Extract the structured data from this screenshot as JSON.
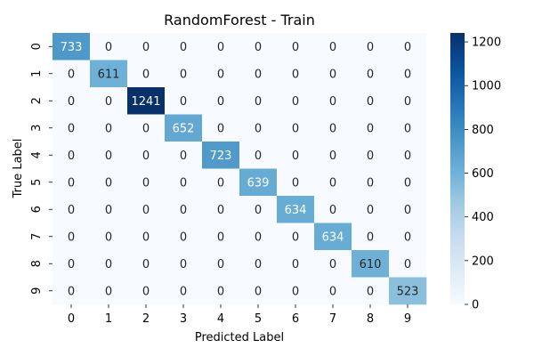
{
  "chart_data": {
    "type": "heatmap",
    "title": "RandomForest - Train",
    "xlabel": "Predicted Label",
    "ylabel": "True Label",
    "x_categories": [
      "0",
      "1",
      "2",
      "3",
      "4",
      "5",
      "6",
      "7",
      "8",
      "9"
    ],
    "y_categories": [
      "0",
      "1",
      "2",
      "3",
      "4",
      "5",
      "6",
      "7",
      "8",
      "9"
    ],
    "values": [
      [
        733,
        0,
        0,
        0,
        0,
        0,
        0,
        0,
        0,
        0
      ],
      [
        0,
        611,
        0,
        0,
        0,
        0,
        0,
        0,
        0,
        0
      ],
      [
        0,
        0,
        1241,
        0,
        0,
        0,
        0,
        0,
        0,
        0
      ],
      [
        0,
        0,
        0,
        652,
        0,
        0,
        0,
        0,
        0,
        0
      ],
      [
        0,
        0,
        0,
        0,
        723,
        0,
        0,
        0,
        0,
        0
      ],
      [
        0,
        0,
        0,
        0,
        0,
        639,
        0,
        0,
        0,
        0
      ],
      [
        0,
        0,
        0,
        0,
        0,
        0,
        634,
        0,
        0,
        0
      ],
      [
        0,
        0,
        0,
        0,
        0,
        0,
        0,
        634,
        0,
        0
      ],
      [
        0,
        0,
        0,
        0,
        0,
        0,
        0,
        0,
        610,
        0
      ],
      [
        0,
        0,
        0,
        0,
        0,
        0,
        0,
        0,
        0,
        523
      ]
    ],
    "colormap": "Blues",
    "colorbar": {
      "min": 0,
      "max": 1241,
      "ticks": [
        0,
        200,
        400,
        600,
        800,
        1000,
        1200
      ]
    },
    "annotations": true,
    "grid": false
  }
}
